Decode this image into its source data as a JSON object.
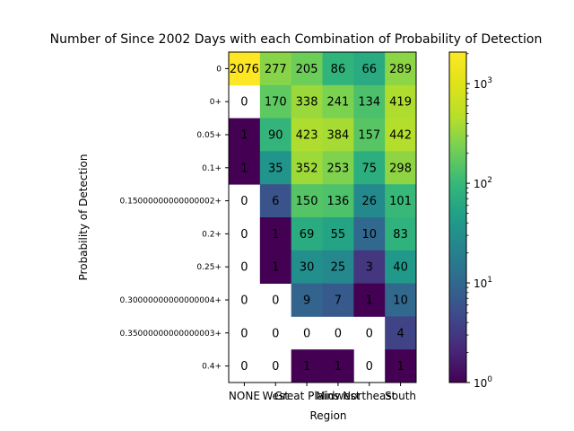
{
  "chart_data": {
    "type": "heatmap",
    "title": "Number of Since 2002 Days with each Combination of Probability of Detection",
    "xlabel": "Region",
    "ylabel": "Probability of Detection",
    "x_categories": [
      "NONE",
      "West",
      "Great Plains",
      "Midwest",
      "Northeast",
      "South"
    ],
    "y_categories": [
      "0",
      "0+",
      "0.05+",
      "0.1+",
      "0.15000000000000002+",
      "0.2+",
      "0.25+",
      "0.30000000000000004+",
      "0.35000000000000003+",
      "0.4+"
    ],
    "values": [
      [
        2076,
        277,
        205,
        86,
        66,
        289
      ],
      [
        0,
        170,
        338,
        241,
        134,
        419
      ],
      [
        1,
        90,
        423,
        384,
        157,
        442
      ],
      [
        1,
        35,
        352,
        253,
        75,
        298
      ],
      [
        0,
        6,
        150,
        136,
        26,
        101
      ],
      [
        0,
        1,
        69,
        55,
        10,
        83
      ],
      [
        0,
        1,
        30,
        25,
        3,
        40
      ],
      [
        0,
        0,
        9,
        7,
        1,
        10
      ],
      [
        0,
        0,
        0,
        0,
        0,
        4
      ],
      [
        0,
        0,
        1,
        1,
        0,
        1
      ]
    ],
    "colorscale": "viridis",
    "color_scale_type": "log",
    "zero_cells": "white",
    "colorbar": {
      "range": [
        1,
        2076
      ],
      "ticks": [
        {
          "value": 1,
          "base": "10",
          "exp": "0"
        },
        {
          "value": 10,
          "base": "10",
          "exp": "1"
        },
        {
          "value": 100,
          "base": "10",
          "exp": "2"
        },
        {
          "value": 1000,
          "base": "10",
          "exp": "3"
        }
      ]
    }
  }
}
